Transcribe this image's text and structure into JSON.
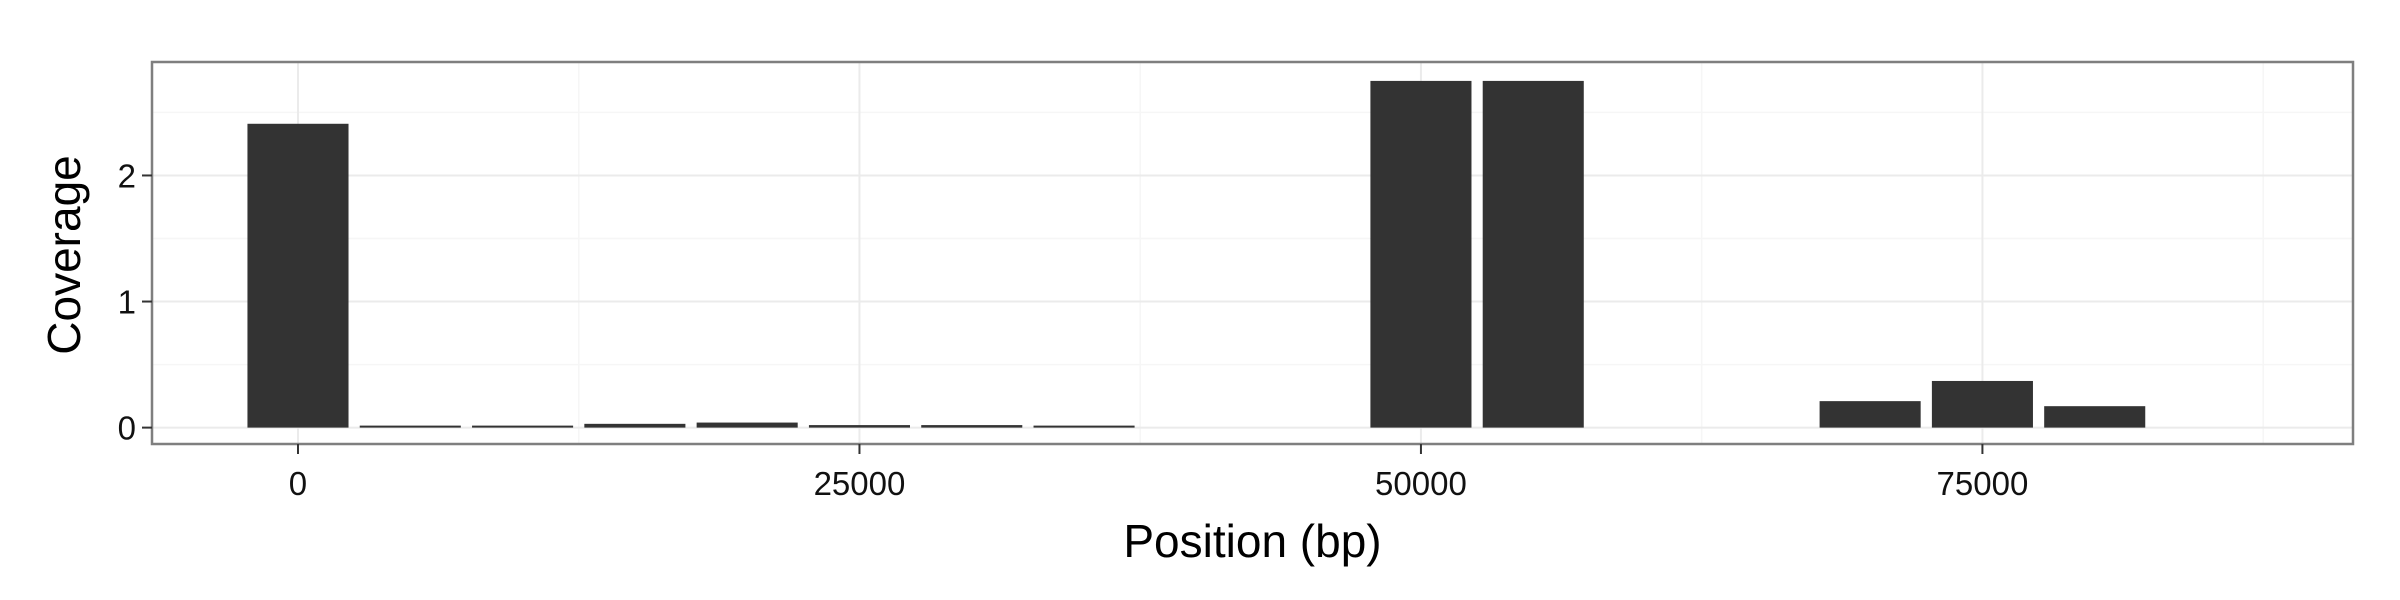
{
  "chart_data": {
    "type": "bar",
    "xlabel": "Position (bp)",
    "ylabel": "Coverage",
    "xlim": [
      -6500,
      91500
    ],
    "ylim": [
      -0.13,
      2.9
    ],
    "x_ticks": [
      0,
      25000,
      50000,
      75000
    ],
    "x_tick_labels": [
      "0",
      "25000",
      "50000",
      "75000"
    ],
    "y_ticks": [
      0,
      1,
      2
    ],
    "y_tick_labels": [
      "0",
      "1",
      "2"
    ],
    "bin_width": 5000,
    "x": [
      0,
      5000,
      10000,
      15000,
      20000,
      25000,
      30000,
      35000,
      40000,
      45000,
      50000,
      55000,
      60000,
      65000,
      70000,
      75000,
      80000
    ],
    "values": [
      2.41,
      0.01,
      0.01,
      0.03,
      0.04,
      0.02,
      0.02,
      0.01,
      0,
      0,
      2.75,
      2.75,
      0,
      0,
      0.21,
      0.37,
      0.17
    ],
    "grid": true,
    "legend": "none",
    "colors": {
      "bar": "#333333",
      "panel_border": "#7f7f7f",
      "grid_major": "#ebebeb",
      "grid_minor": "#f6f6f6",
      "tick": "#333333"
    }
  }
}
